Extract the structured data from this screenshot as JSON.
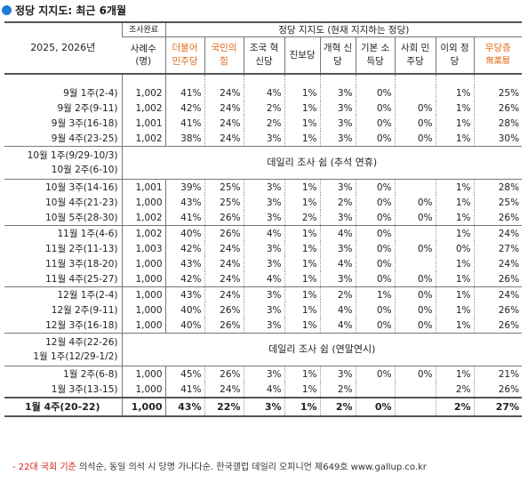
{
  "title": "정당 지지도: 최근 6개월",
  "header": {
    "row_label": "2025, 2026년",
    "sample_top": "조사완료",
    "sample_bottom": "사례수 (명)",
    "group_label": "정당 지지도 (현재 지지하는 정당)",
    "parties": [
      "더불어 민주당",
      "국민의 힘",
      "조국 혁신당",
      "진보당",
      "개혁 신당",
      "기본 소득당",
      "사회 민주당",
      "이외 정당",
      "무당층"
    ],
    "last_sub": "無黨層"
  },
  "groups": [
    {
      "rows": [
        {
          "label": "9월 1주(2-4)",
          "n": "1,002",
          "v": [
            "41%",
            "24%",
            "4%",
            "1%",
            "3%",
            "0%",
            "",
            "1%",
            "25%"
          ]
        },
        {
          "label": "9월 2주(9-11)",
          "n": "1,002",
          "v": [
            "42%",
            "24%",
            "2%",
            "1%",
            "3%",
            "0%",
            "0%",
            "1%",
            "26%"
          ]
        },
        {
          "label": "9월 3주(16-18)",
          "n": "1,001",
          "v": [
            "41%",
            "24%",
            "2%",
            "1%",
            "3%",
            "0%",
            "0%",
            "1%",
            "28%"
          ]
        },
        {
          "label": "9월 4주(23-25)",
          "n": "1,002",
          "v": [
            "38%",
            "24%",
            "3%",
            "1%",
            "3%",
            "0%",
            "0%",
            "1%",
            "30%"
          ]
        }
      ]
    },
    {
      "note": "데일리 조사 쉼 (추석 연휴)",
      "labels": [
        "10월 1주(9/29-10/3)",
        "10월 2주(6-10)"
      ]
    },
    {
      "rows": [
        {
          "label": "10월 3주(14-16)",
          "n": "1,001",
          "v": [
            "39%",
            "25%",
            "3%",
            "1%",
            "3%",
            "0%",
            "",
            "1%",
            "28%"
          ]
        },
        {
          "label": "10월 4주(21-23)",
          "n": "1,000",
          "v": [
            "43%",
            "25%",
            "3%",
            "1%",
            "2%",
            "0%",
            "0%",
            "1%",
            "25%"
          ]
        },
        {
          "label": "10월 5주(28-30)",
          "n": "1,002",
          "v": [
            "41%",
            "26%",
            "3%",
            "2%",
            "3%",
            "0%",
            "0%",
            "1%",
            "26%"
          ]
        }
      ]
    },
    {
      "rows": [
        {
          "label": "11월 1주(4-6)",
          "n": "1,002",
          "v": [
            "40%",
            "26%",
            "4%",
            "1%",
            "4%",
            "0%",
            "",
            "1%",
            "24%"
          ]
        },
        {
          "label": "11월 2주(11-13)",
          "n": "1,003",
          "v": [
            "42%",
            "24%",
            "3%",
            "1%",
            "3%",
            "0%",
            "0%",
            "0%",
            "27%"
          ]
        },
        {
          "label": "11월 3주(18-20)",
          "n": "1,000",
          "v": [
            "43%",
            "24%",
            "3%",
            "1%",
            "4%",
            "0%",
            "",
            "1%",
            "24%"
          ]
        },
        {
          "label": "11월 4주(25-27)",
          "n": "1,000",
          "v": [
            "42%",
            "24%",
            "4%",
            "1%",
            "3%",
            "0%",
            "0%",
            "1%",
            "26%"
          ]
        }
      ]
    },
    {
      "rows": [
        {
          "label": "12월 1주(2-4)",
          "n": "1,000",
          "v": [
            "43%",
            "24%",
            "3%",
            "1%",
            "2%",
            "1%",
            "0%",
            "1%",
            "24%"
          ]
        },
        {
          "label": "12월 2주(9-11)",
          "n": "1,000",
          "v": [
            "40%",
            "26%",
            "3%",
            "1%",
            "4%",
            "0%",
            "0%",
            "1%",
            "26%"
          ]
        },
        {
          "label": "12월 3주(16-18)",
          "n": "1,000",
          "v": [
            "40%",
            "26%",
            "3%",
            "1%",
            "4%",
            "0%",
            "0%",
            "1%",
            "26%"
          ]
        }
      ]
    },
    {
      "note": "데일리 조사 쉼 (연말연시)",
      "labels": [
        "12월 4주(22-26)",
        "1월 1주(12/29-1/2)"
      ]
    },
    {
      "rows": [
        {
          "label": "1월 2주(6-8)",
          "n": "1,000",
          "v": [
            "45%",
            "26%",
            "3%",
            "1%",
            "3%",
            "0%",
            "0%",
            "1%",
            "21%"
          ]
        },
        {
          "label": "1월 3주(13-15)",
          "n": "1,000",
          "v": [
            "41%",
            "24%",
            "4%",
            "1%",
            "2%",
            "",
            "",
            "2%",
            "26%"
          ]
        }
      ]
    }
  ],
  "final": {
    "label": "1월 4주(20-22)",
    "n": "1,000",
    "v": [
      "43%",
      "22%",
      "3%",
      "1%",
      "2%",
      "0%",
      "",
      "2%",
      "27%"
    ]
  },
  "footer": {
    "red": "- 22대 국회 기준",
    "rest": " 의석순, 동일 의석 시 당명 가나다순. 한국갤럽 데일리 오피니언 제649호 www.gallup.co.kr"
  },
  "colors": {
    "accent": "#1e7bd6",
    "footnote_red": "#d72020",
    "party_header_orange": "#e06a1c"
  }
}
